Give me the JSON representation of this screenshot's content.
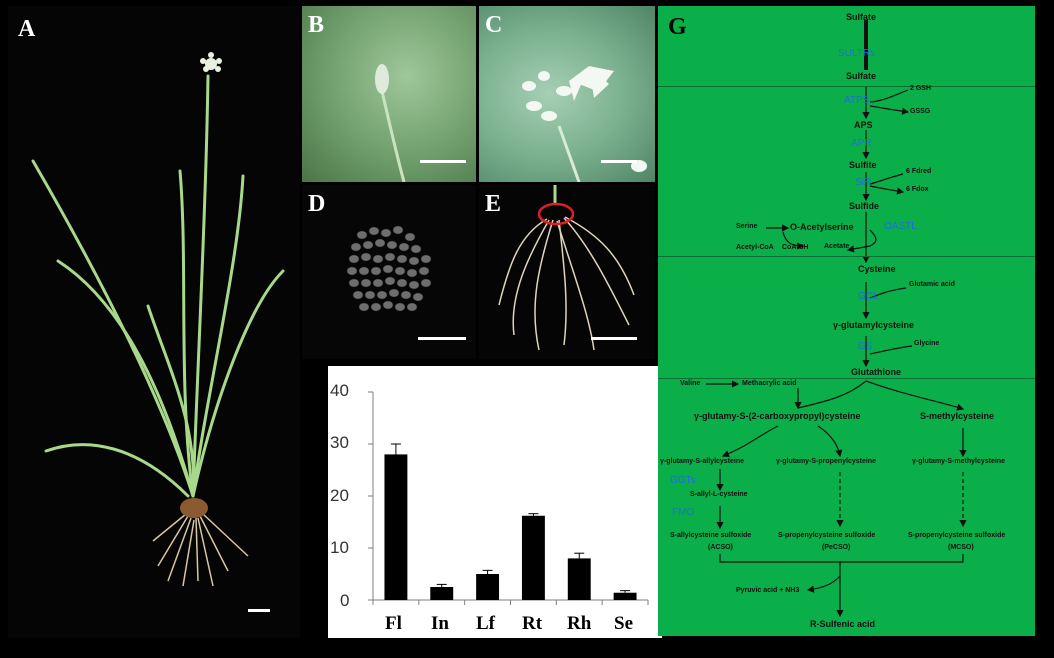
{
  "panels": {
    "A": "A",
    "B": "B",
    "C": "C",
    "D": "D",
    "E": "E",
    "G": "G"
  },
  "chart_data": {
    "type": "bar",
    "categories": [
      "Fl",
      "In",
      "Lf",
      "Rt",
      "Rh",
      "Se"
    ],
    "values": [
      28.0,
      2.5,
      5.0,
      16.2,
      8.0,
      1.4
    ],
    "errors": [
      2.0,
      0.5,
      0.7,
      0.4,
      1.0,
      0.4
    ],
    "yticks": [
      "0",
      "10",
      "20",
      "30",
      "40"
    ],
    "ylim": [
      0,
      40
    ],
    "color": "#000000"
  },
  "pathway": {
    "sulfate": "Sulfate",
    "sultrs": "SULTRs",
    "sulfate2": "Sulfate",
    "atps": "ATPS",
    "twogsh": "2 GSH",
    "gssg": "GSSG",
    "aps": "APS",
    "apr": "APR",
    "sulfite": "Sulfite",
    "sir": "SiR",
    "fdred": "6 Fdred",
    "fdox": "6 Fdox",
    "sulfide": "Sulfide",
    "serine": "Serine",
    "oacetylserine": "O-Acetylserine",
    "acetylcoa": "Acetyl-CoA",
    "coash": "CoA-SH",
    "acetate": "Acetate",
    "oastl": "OASTL",
    "cysteine": "Cysteine",
    "gcl": "GCL",
    "glutamic": "Glutamic acid",
    "gglutamylcysteine": "γ-glutamylcysteine",
    "gs": "GS",
    "glycine": "Glycine",
    "glutathione": "Glutathione",
    "valine": "Valine",
    "methacrylic": "Methacrylic acid",
    "gcarboxy": "γ-glutamy-S-(2-carboxypropyl)cysteine",
    "smethyl": "S-methylcysteine",
    "gallyl": "γ-glutamy-S-allylcysteine",
    "gpropenyl": "γ-glutamy-S-propenylcysteine",
    "gmethyl": "γ-glutamy-S-methylcysteine",
    "ggts": "GGTs",
    "sallyl": "S-allyl-L-cysteine",
    "fmo": "FMO",
    "acso": "S-allylcysteine sulfoxide",
    "acso2": "(ACSO)",
    "pecso": "S-propenylcysteine sulfoxide",
    "pecso2": "(PeCSO)",
    "mcso": "S-propenylcysteine sulfoxide",
    "mcso2": "(MCSO)",
    "pyruvic": "Pyruvic acid + NH3",
    "rsulfenic": "R-Sulfenic acid"
  }
}
